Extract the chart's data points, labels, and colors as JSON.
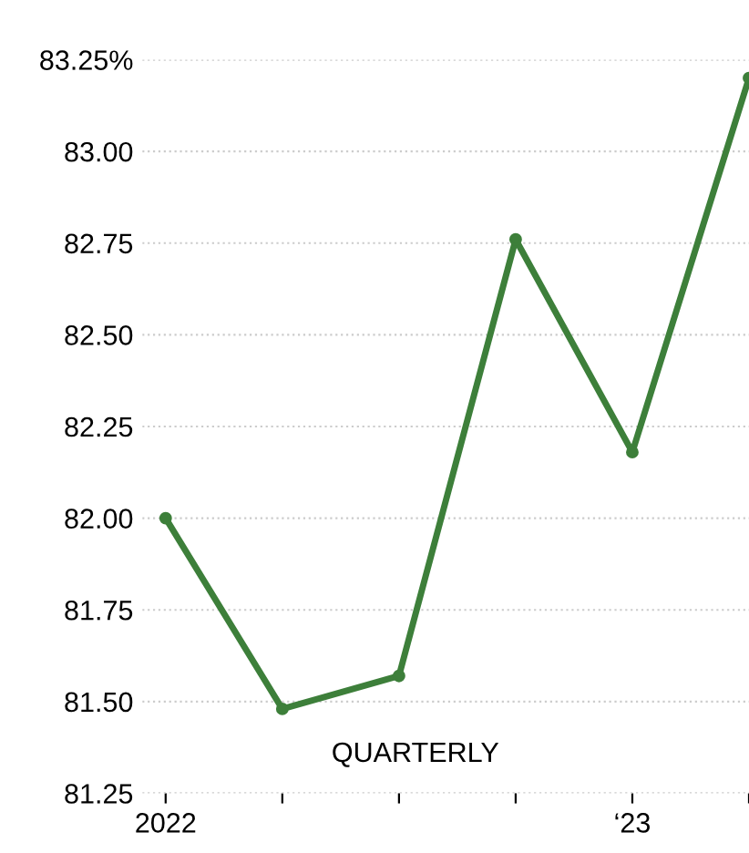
{
  "chart_data": {
    "type": "line",
    "categories": [
      "2022",
      null,
      null,
      null,
      "‘23",
      null
    ],
    "series": [
      {
        "color": "#3d7f3a",
        "values": [
          82.0,
          81.48,
          81.57,
          82.76,
          82.18,
          83.2
        ]
      }
    ],
    "ylim": [
      81.25,
      83.25
    ],
    "yticks": [
      {
        "value": 81.25,
        "label": "81.25"
      },
      {
        "value": 81.5,
        "label": "81.50"
      },
      {
        "value": 81.75,
        "label": "81.75"
      },
      {
        "value": 82,
        "label": "82.00"
      },
      {
        "value": 82.25,
        "label": "82.25"
      },
      {
        "value": 82.5,
        "label": "82.50"
      },
      {
        "value": 82.75,
        "label": "82.75"
      },
      {
        "value": 83,
        "label": "83.00"
      },
      {
        "value": 83.25,
        "label": "83.25%"
      }
    ],
    "annotations": [
      "QUARTERLY"
    ],
    "grid": "y",
    "marker": "circle",
    "line_style": "solid",
    "legend": false
  }
}
